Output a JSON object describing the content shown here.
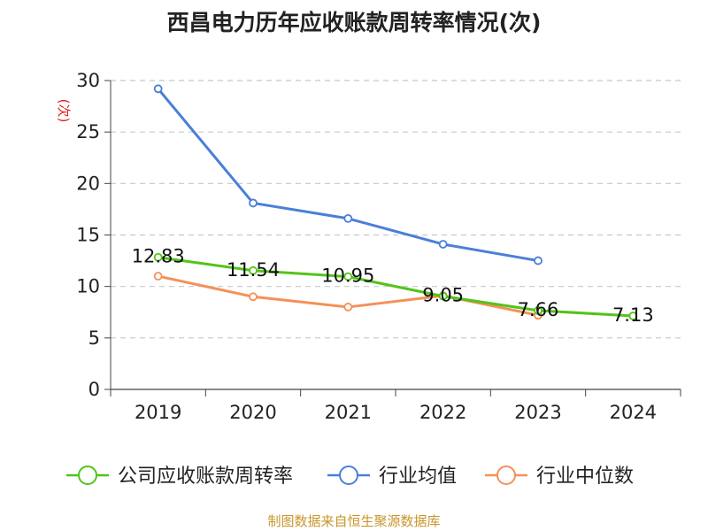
{
  "chart_data": {
    "type": "line",
    "title": "西昌电力历年应收账款周转率情况(次)",
    "ylabel": "(次)",
    "xlabel": "",
    "categories": [
      "2019",
      "2020",
      "2021",
      "2022",
      "2023",
      "2024"
    ],
    "ylim": [
      0,
      30
    ],
    "yticks": [
      0,
      5,
      10,
      15,
      20,
      25,
      30
    ],
    "grid": true,
    "legend_position": "bottom",
    "series": [
      {
        "name": "公司应收账款周转率",
        "color": "#52c41a",
        "values": [
          12.83,
          11.54,
          10.95,
          9.05,
          7.66,
          7.13
        ],
        "labels": [
          "12.83",
          "11.54",
          "10.95",
          "9.05",
          "7.66",
          "7.13"
        ]
      },
      {
        "name": "行业均值",
        "color": "#4a7fd9",
        "values": [
          29.2,
          18.1,
          16.6,
          14.1,
          12.5,
          null
        ]
      },
      {
        "name": "行业中位数",
        "color": "#f59058",
        "values": [
          11.0,
          9.0,
          8.0,
          9.1,
          7.2,
          null
        ]
      }
    ],
    "source": "制图数据来自恒生聚源数据库"
  }
}
